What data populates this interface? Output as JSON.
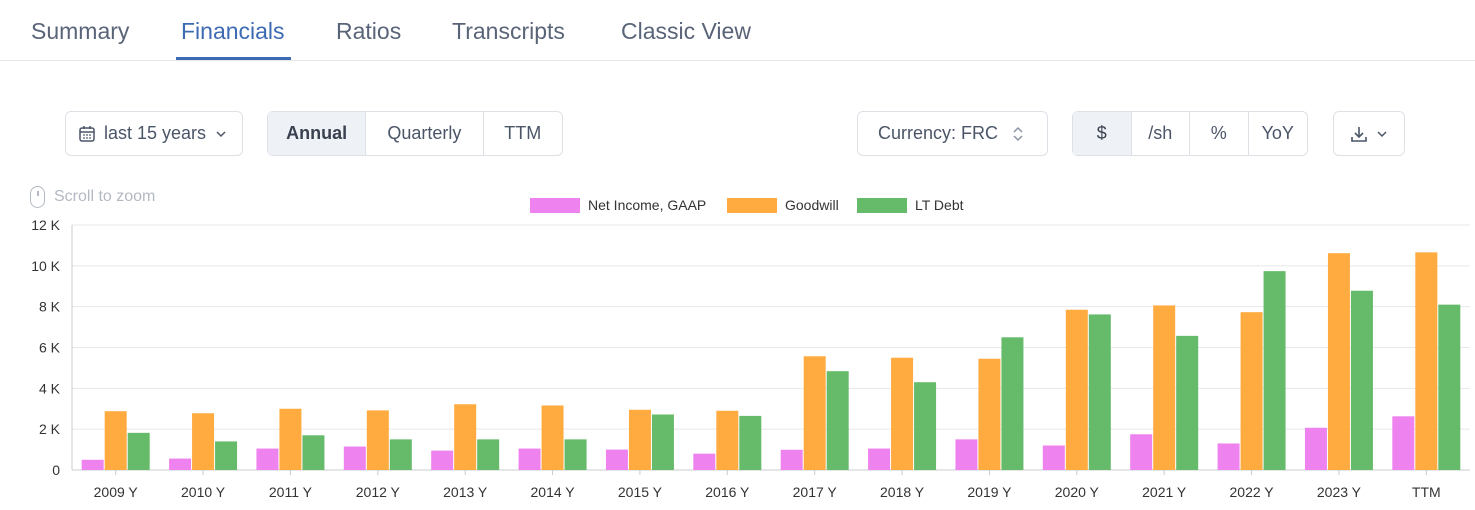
{
  "tabs": [
    {
      "label": "Summary"
    },
    {
      "label": "Financials"
    },
    {
      "label": "Ratios"
    },
    {
      "label": "Transcripts"
    },
    {
      "label": "Classic View"
    }
  ],
  "controls": {
    "range_label": "last 15 years",
    "periods": [
      "Annual",
      "Quarterly",
      "TTM"
    ],
    "active_period": "Annual",
    "currency_label": "Currency: FRC",
    "units": [
      "$",
      "/sh",
      "%",
      "YoY"
    ],
    "active_unit": "$"
  },
  "zoom_hint": "Scroll to zoom",
  "colors": {
    "net_income": "#ee82ee",
    "goodwill": "#ffab40",
    "lt_debt": "#66bb6a",
    "active_tab": "#3d6bb3"
  },
  "icons": [
    "calendar-icon",
    "chevron-down-icon",
    "sort-arrows-icon",
    "download-icon",
    "mouse-icon"
  ],
  "chart_data": {
    "type": "bar",
    "categories": [
      "2009 Y",
      "2010 Y",
      "2011 Y",
      "2012 Y",
      "2013 Y",
      "2014 Y",
      "2015 Y",
      "2016 Y",
      "2017 Y",
      "2018 Y",
      "2019 Y",
      "2020 Y",
      "2021 Y",
      "2022 Y",
      "2023 Y",
      "TTM"
    ],
    "series": [
      {
        "name": "Net Income, GAAP",
        "values": [
          500,
          560,
          1050,
          1150,
          950,
          1050,
          1000,
          800,
          990,
          1050,
          1500,
          1200,
          1750,
          1300,
          2070,
          2630
        ]
      },
      {
        "name": "Goodwill",
        "values": [
          2880,
          2780,
          3000,
          2920,
          3220,
          3160,
          2950,
          2900,
          5570,
          5500,
          5450,
          7850,
          8060,
          7730,
          10620,
          10660
        ]
      },
      {
        "name": "LT Debt",
        "values": [
          1820,
          1400,
          1700,
          1500,
          1500,
          1500,
          2720,
          2650,
          4840,
          4300,
          6500,
          7620,
          6570,
          9740,
          8780,
          8100
        ]
      }
    ],
    "ylim": [
      0,
      12000
    ],
    "yticks": [
      0,
      2000,
      4000,
      6000,
      8000,
      10000,
      12000
    ],
    "ytick_labels": [
      "0",
      "2 K",
      "4 K",
      "6 K",
      "8 K",
      "10 K",
      "12 K"
    ],
    "grid": true,
    "legend": "top-center"
  }
}
